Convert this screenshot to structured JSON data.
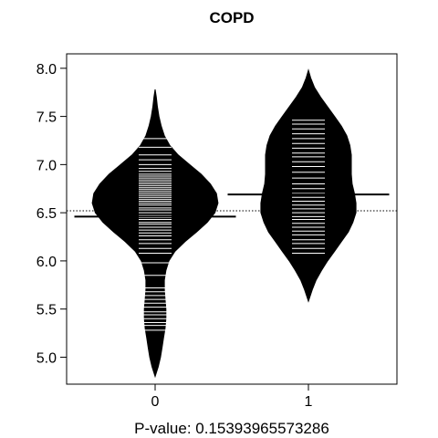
{
  "chart_data": {
    "type": "beanplot",
    "title": "COPD",
    "xlabel": "P-value: 0.15393965573286",
    "categories": [
      "0",
      "1"
    ],
    "ylim": [
      4.72,
      8.15
    ],
    "y_ticks": [
      "5.0",
      "5.5",
      "6.0",
      "6.5",
      "7.0",
      "7.5",
      "8.0"
    ],
    "overall_mean": 6.52,
    "groups": [
      {
        "name": "0",
        "mean": 6.46,
        "density": [
          [
            4.8,
            0.0
          ],
          [
            4.9,
            0.04
          ],
          [
            5.0,
            0.07
          ],
          [
            5.1,
            0.09
          ],
          [
            5.2,
            0.11
          ],
          [
            5.3,
            0.13
          ],
          [
            5.4,
            0.14
          ],
          [
            5.5,
            0.14
          ],
          [
            5.6,
            0.13
          ],
          [
            5.7,
            0.12
          ],
          [
            5.8,
            0.12
          ],
          [
            5.9,
            0.14
          ],
          [
            6.0,
            0.18
          ],
          [
            6.1,
            0.26
          ],
          [
            6.2,
            0.39
          ],
          [
            6.3,
            0.54
          ],
          [
            6.4,
            0.68
          ],
          [
            6.5,
            0.78
          ],
          [
            6.6,
            0.82
          ],
          [
            6.7,
            0.8
          ],
          [
            6.8,
            0.72
          ],
          [
            6.9,
            0.6
          ],
          [
            7.0,
            0.45
          ],
          [
            7.1,
            0.3
          ],
          [
            7.2,
            0.19
          ],
          [
            7.3,
            0.12
          ],
          [
            7.4,
            0.08
          ],
          [
            7.5,
            0.05
          ],
          [
            7.6,
            0.03
          ],
          [
            7.7,
            0.015
          ],
          [
            7.78,
            0.0
          ]
        ],
        "values": [
          5.28,
          5.33,
          5.36,
          5.4,
          5.44,
          5.47,
          5.52,
          5.56,
          5.6,
          5.64,
          5.68,
          5.72,
          5.85,
          5.98,
          6.08,
          6.13,
          6.18,
          6.22,
          6.26,
          6.29,
          6.32,
          6.35,
          6.38,
          6.4,
          6.43,
          6.45,
          6.47,
          6.5,
          6.53,
          6.55,
          6.58,
          6.6,
          6.62,
          6.64,
          6.66,
          6.68,
          6.7,
          6.72,
          6.74,
          6.76,
          6.78,
          6.8,
          6.82,
          6.84,
          6.86,
          6.88,
          6.9,
          6.93,
          6.96,
          7.0,
          7.05,
          7.1,
          7.18,
          7.27
        ]
      },
      {
        "name": "1",
        "mean": 6.69,
        "density": [
          [
            5.58,
            0.0
          ],
          [
            5.7,
            0.05
          ],
          [
            5.8,
            0.1
          ],
          [
            5.9,
            0.17
          ],
          [
            6.0,
            0.25
          ],
          [
            6.1,
            0.34
          ],
          [
            6.2,
            0.43
          ],
          [
            6.3,
            0.52
          ],
          [
            6.4,
            0.58
          ],
          [
            6.5,
            0.62
          ],
          [
            6.6,
            0.62
          ],
          [
            6.7,
            0.6
          ],
          [
            6.8,
            0.57
          ],
          [
            6.9,
            0.56
          ],
          [
            7.0,
            0.56
          ],
          [
            7.1,
            0.56
          ],
          [
            7.2,
            0.54
          ],
          [
            7.3,
            0.5
          ],
          [
            7.4,
            0.43
          ],
          [
            7.5,
            0.34
          ],
          [
            7.6,
            0.25
          ],
          [
            7.7,
            0.16
          ],
          [
            7.8,
            0.08
          ],
          [
            7.9,
            0.03
          ],
          [
            7.98,
            0.0
          ]
        ],
        "values": [
          6.08,
          6.13,
          6.18,
          6.22,
          6.27,
          6.31,
          6.35,
          6.39,
          6.43,
          6.46,
          6.5,
          6.54,
          6.58,
          6.62,
          6.66,
          6.7,
          6.75,
          6.8,
          6.86,
          6.92,
          6.98,
          7.03,
          7.08,
          7.12,
          7.17,
          7.22,
          7.27,
          7.32,
          7.37,
          7.42,
          7.46
        ]
      }
    ]
  }
}
